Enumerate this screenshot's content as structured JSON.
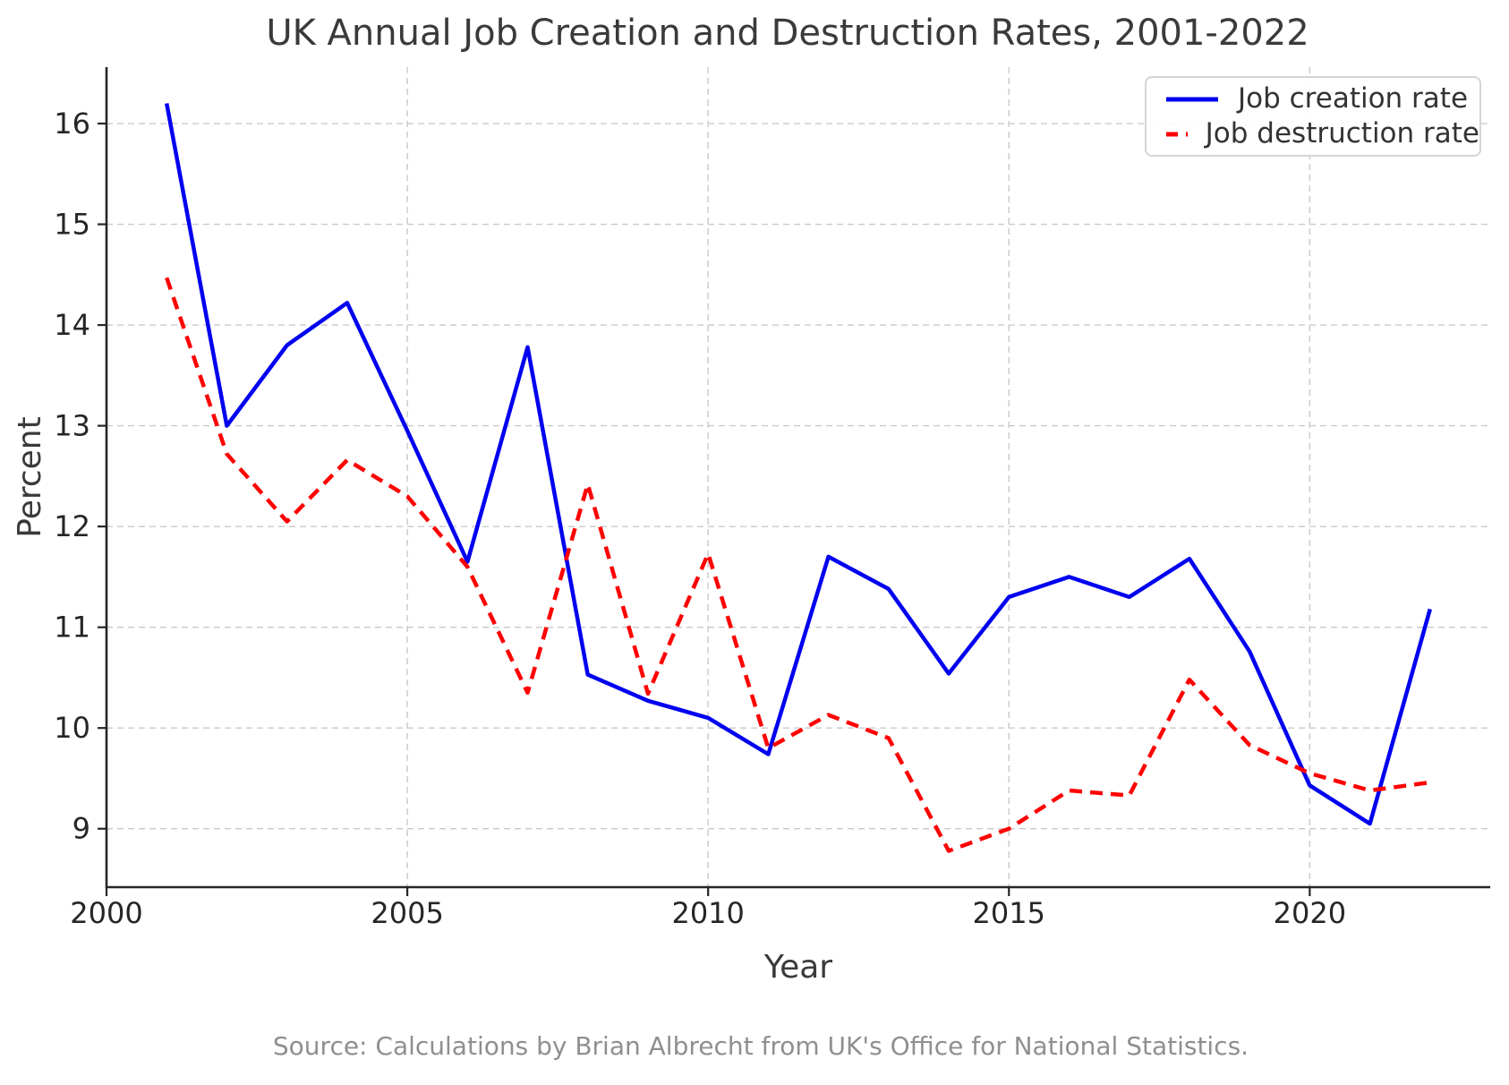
{
  "source_note": "Source: Calculations by Brian Albrecht from UK's Office for National Statistics.",
  "chart_data": {
    "type": "line",
    "title": "UK Annual Job Creation and Destruction Rates, 2001-2022",
    "xlabel": "Year",
    "ylabel": "Percent",
    "x": [
      2001,
      2002,
      2003,
      2004,
      2005,
      2006,
      2007,
      2008,
      2009,
      2010,
      2011,
      2012,
      2013,
      2014,
      2015,
      2016,
      2017,
      2018,
      2019,
      2020,
      2021,
      2022
    ],
    "series": [
      {
        "name": "Job creation rate",
        "color": "#0000f0",
        "line_style": "solid",
        "values": [
          16.2,
          13.0,
          13.8,
          14.22,
          12.95,
          11.65,
          13.78,
          10.53,
          10.27,
          10.1,
          9.74,
          11.7,
          11.38,
          10.54,
          11.3,
          11.5,
          11.3,
          11.68,
          10.76,
          9.43,
          9.05,
          11.18
        ]
      },
      {
        "name": "Job destruction rate",
        "color": "#ff0000",
        "line_style": "dashed",
        "values": [
          14.47,
          12.72,
          12.05,
          12.66,
          12.3,
          11.6,
          10.35,
          12.42,
          10.34,
          11.73,
          9.8,
          10.13,
          9.9,
          8.78,
          9.0,
          9.38,
          9.33,
          10.48,
          9.83,
          9.55,
          9.38,
          9.46
        ]
      }
    ],
    "xticks": [
      2000,
      2005,
      2010,
      2015,
      2020
    ],
    "yticks": [
      9,
      10,
      11,
      12,
      13,
      14,
      15,
      16
    ],
    "xlim": [
      2000,
      2023
    ],
    "ylim": [
      8.42,
      16.56
    ],
    "grid": true,
    "legend_position": "upper right",
    "colors": {
      "grid": "#c9c9c9",
      "spine": "#262626",
      "tick": "#262626"
    }
  }
}
